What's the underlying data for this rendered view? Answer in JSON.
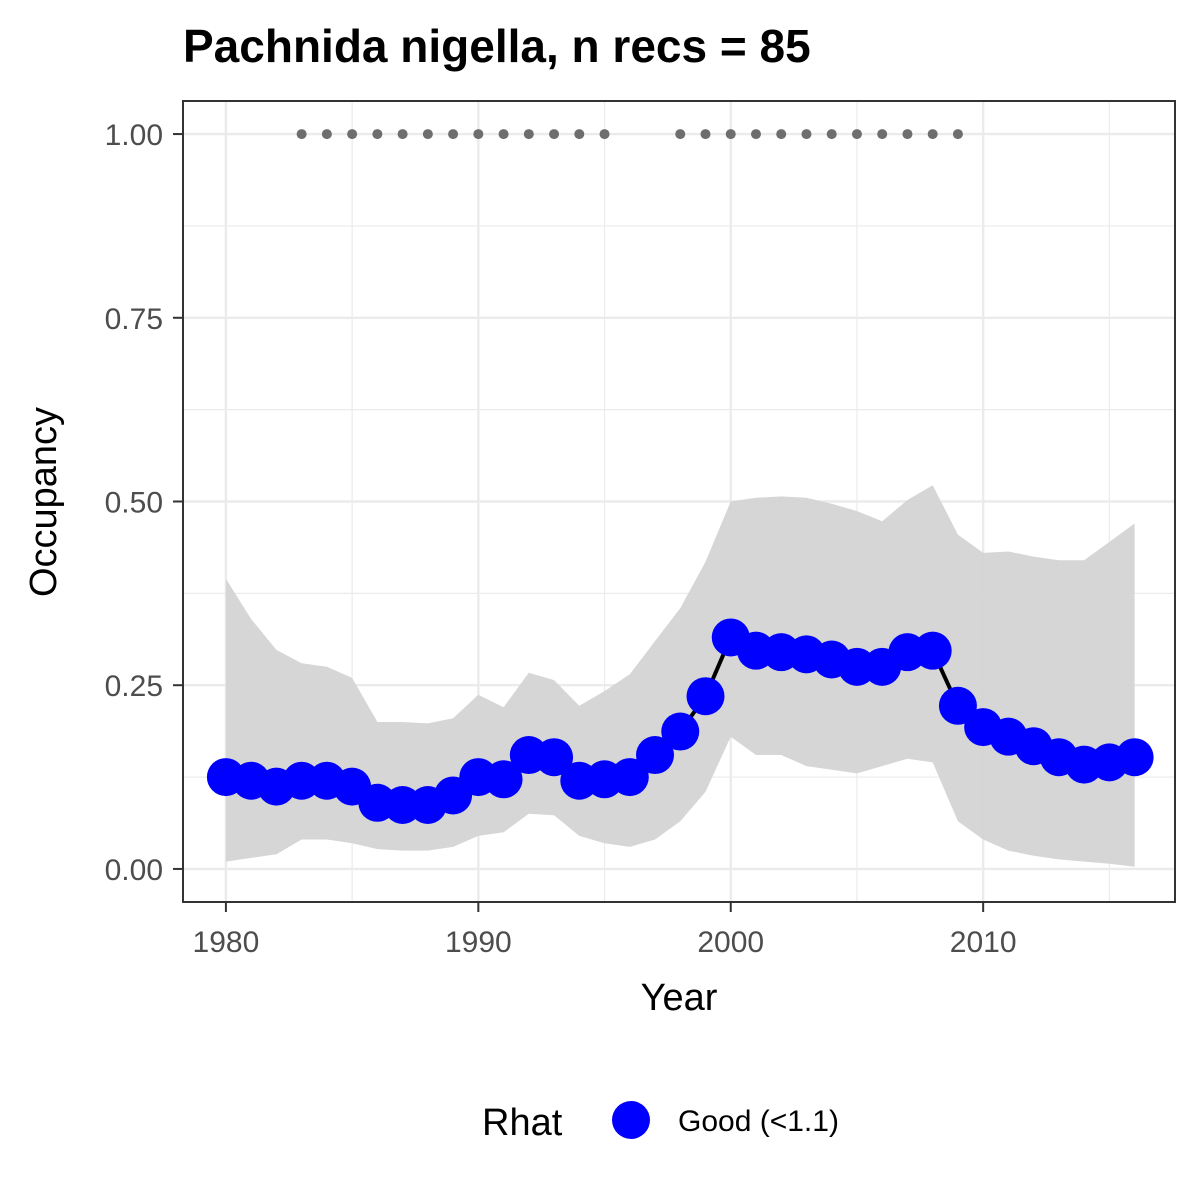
{
  "chart_data": {
    "type": "line",
    "title": "Pachnida nigella, n recs = 85",
    "xlabel": "Year",
    "ylabel": "Occupancy",
    "xlim": [
      1978.3,
      2017.6
    ],
    "ylim": [
      -0.045,
      1.045
    ],
    "x_ticks": [
      1980,
      1990,
      2000,
      2010
    ],
    "x_tick_labels": [
      "1980",
      "1990",
      "2000",
      "2010"
    ],
    "y_ticks": [
      0,
      0.25,
      0.5,
      0.75,
      1.0
    ],
    "y_tick_labels": [
      "0.00",
      "0.25",
      "0.50",
      "0.75",
      "1.00"
    ],
    "grid": true,
    "legend": {
      "position": "bottom",
      "title": "Rhat",
      "entries": [
        {
          "label": "Good (<1.1)",
          "color": "#0000ff"
        }
      ]
    },
    "colors": {
      "points": "#0000ff",
      "line": "#000000",
      "band": "#d4d4d4",
      "records": "#6e6e6e",
      "grid": "#ebebeb",
      "panel_border": "#333333"
    },
    "series": [
      {
        "x": [
          1980,
          1981,
          1982,
          1983,
          1984,
          1985,
          1986,
          1987,
          1988,
          1989,
          1990,
          1991,
          1992,
          1993,
          1994,
          1995,
          1996,
          1997,
          1998,
          1999,
          2000,
          2001,
          2002,
          2003,
          2004,
          2005,
          2006,
          2007,
          2008,
          2009,
          2010,
          2011,
          2012,
          2013,
          2014,
          2015,
          2016
        ],
        "y": [
          0.125,
          0.12,
          0.112,
          0.12,
          0.12,
          0.112,
          0.09,
          0.087,
          0.087,
          0.1,
          0.125,
          0.122,
          0.155,
          0.152,
          0.12,
          0.122,
          0.125,
          0.155,
          0.187,
          0.235,
          0.315,
          0.297,
          0.295,
          0.292,
          0.285,
          0.275,
          0.275,
          0.295,
          0.297,
          0.222,
          0.193,
          0.18,
          0.167,
          0.152,
          0.142,
          0.145,
          0.152
        ],
        "lower": [
          0.01,
          0.015,
          0.02,
          0.04,
          0.04,
          0.035,
          0.027,
          0.025,
          0.025,
          0.03,
          0.045,
          0.05,
          0.075,
          0.073,
          0.045,
          0.035,
          0.03,
          0.04,
          0.065,
          0.105,
          0.18,
          0.155,
          0.155,
          0.14,
          0.135,
          0.13,
          0.14,
          0.15,
          0.145,
          0.065,
          0.04,
          0.025,
          0.018,
          0.013,
          0.01,
          0.007,
          0.003
        ],
        "upper": [
          0.395,
          0.34,
          0.298,
          0.28,
          0.275,
          0.26,
          0.2,
          0.2,
          0.198,
          0.205,
          0.237,
          0.22,
          0.267,
          0.257,
          0.222,
          0.242,
          0.265,
          0.31,
          0.355,
          0.418,
          0.5,
          0.505,
          0.507,
          0.505,
          0.497,
          0.487,
          0.473,
          0.502,
          0.522,
          0.455,
          0.43,
          0.432,
          0.425,
          0.42,
          0.42,
          0.445,
          0.47
        ]
      }
    ],
    "records": {
      "y": 1.0,
      "x": [
        1983,
        1984,
        1985,
        1986,
        1987,
        1988,
        1989,
        1990,
        1991,
        1992,
        1993,
        1994,
        1995,
        1998,
        1999,
        2000,
        2001,
        2002,
        2003,
        2004,
        2005,
        2006,
        2007,
        2008,
        2009
      ]
    }
  }
}
